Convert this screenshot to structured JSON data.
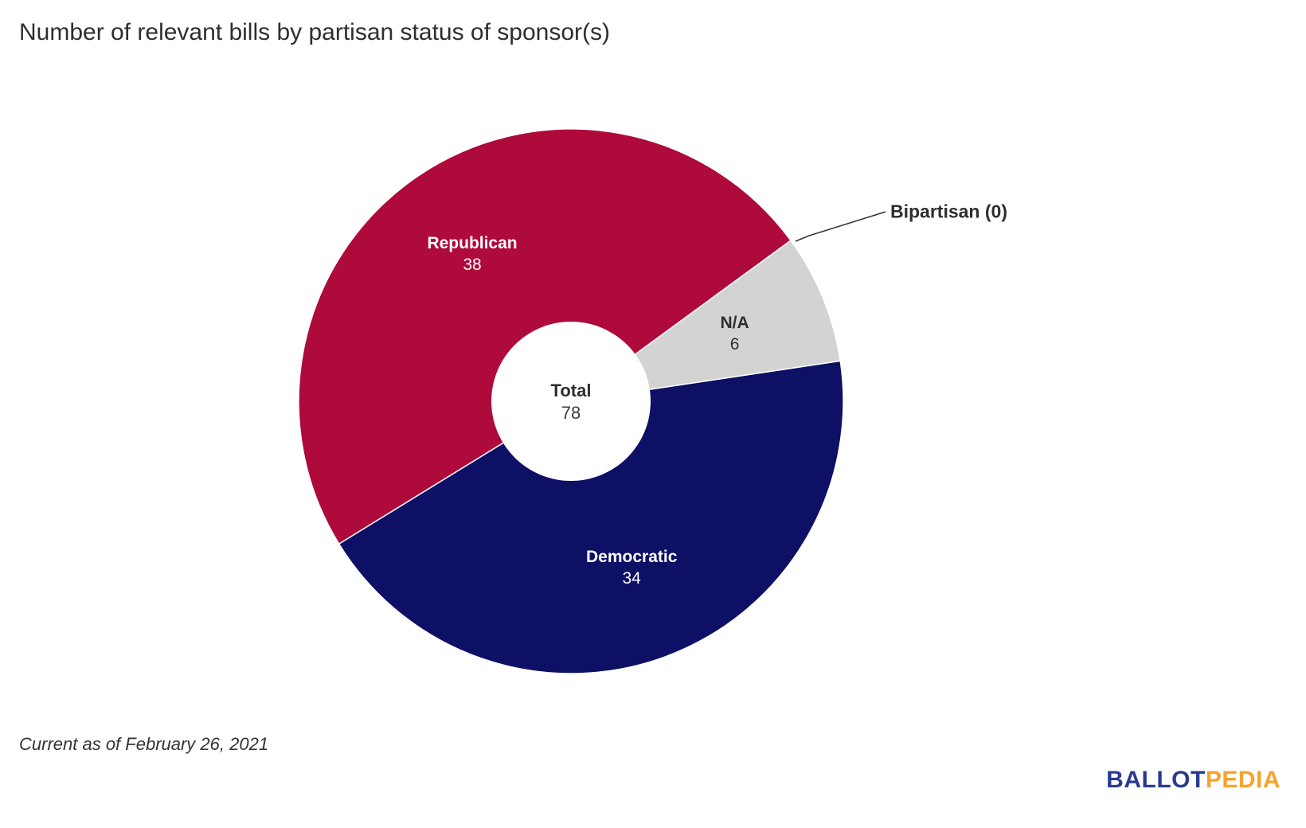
{
  "title": "Number of relevant bills by partisan status of sponsor(s)",
  "footnote": "Current as of February 26, 2021",
  "logo": {
    "ballot": "BALLOT",
    "pedia": "PEDIA",
    "ballot_color": "#2A3B8E",
    "pedia_color": "#F7A32D"
  },
  "chart_data": {
    "type": "pie",
    "variant": "donut",
    "title": "Number of relevant bills by partisan status of sponsor(s)",
    "background": "#FFFFFF",
    "rotation_deg": 53.8,
    "label_radius_frac": 0.65,
    "total_label": "Total",
    "total_value": 78,
    "callout": {
      "label": "Bipartisan (0)",
      "slice": "Bipartisan"
    },
    "slices": [
      {
        "label": "Bipartisan",
        "value": 0,
        "color": null,
        "text_color": "#2E2E2E"
      },
      {
        "label": "N/A",
        "value": 6,
        "color": "#D3D3D3",
        "text_color": "#2E2E2E"
      },
      {
        "label": "Democratic",
        "value": 34,
        "color": "#0D1065",
        "text_color": "#FFFFFF"
      },
      {
        "label": "Republican",
        "value": 38,
        "color": "#AF0A3C",
        "text_color": "#FFFFFF"
      }
    ]
  }
}
